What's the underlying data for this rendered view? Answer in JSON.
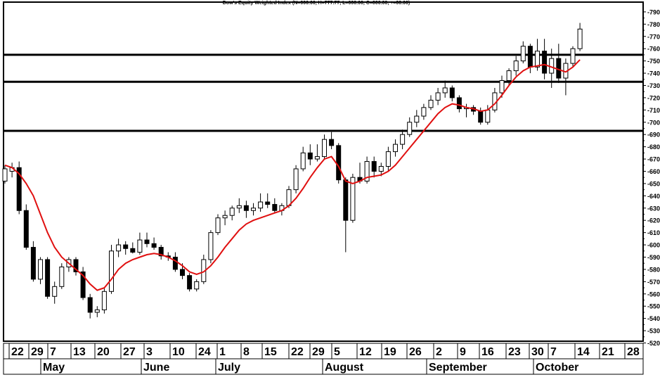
{
  "chart_data": {
    "type": "candlestick",
    "title": "Dow's Equity Weighted Index (N=000.00, H=777.77, L=000.00, C=000.00, +=00.00)",
    "ylim": [
      520,
      792
    ],
    "y_ticks": [
      790,
      780,
      770,
      760,
      750,
      740,
      730,
      720,
      710,
      700,
      690,
      680,
      670,
      660,
      650,
      640,
      630,
      620,
      610,
      600,
      590,
      580,
      570,
      560,
      550,
      540,
      530,
      520
    ],
    "grid": false,
    "x_day_labels": [
      "22",
      "29",
      "7",
      "13",
      "20",
      "27",
      "3",
      "10",
      "24",
      "1",
      "8",
      "15",
      "22",
      "29",
      "5",
      "12",
      "19",
      "26",
      "2",
      "9",
      "16",
      "23",
      "30",
      "7",
      "14",
      "21",
      "28"
    ],
    "x_month_labels": [
      "May",
      "June",
      "July",
      "August",
      "September",
      "October"
    ],
    "horizontal_levels": [
      755,
      733,
      693
    ],
    "candles": [
      {
        "o": 652,
        "h": 665,
        "l": 650,
        "c": 662
      },
      {
        "o": 660,
        "h": 667,
        "l": 655,
        "c": 663
      },
      {
        "o": 663,
        "h": 668,
        "l": 625,
        "c": 628
      },
      {
        "o": 628,
        "h": 633,
        "l": 596,
        "c": 598
      },
      {
        "o": 598,
        "h": 603,
        "l": 570,
        "c": 572
      },
      {
        "o": 572,
        "h": 590,
        "l": 568,
        "c": 588
      },
      {
        "o": 588,
        "h": 590,
        "l": 556,
        "c": 558
      },
      {
        "o": 558,
        "h": 570,
        "l": 552,
        "c": 566
      },
      {
        "o": 566,
        "h": 585,
        "l": 564,
        "c": 582
      },
      {
        "o": 582,
        "h": 590,
        "l": 578,
        "c": 588
      },
      {
        "o": 588,
        "h": 590,
        "l": 575,
        "c": 578
      },
      {
        "o": 578,
        "h": 582,
        "l": 555,
        "c": 557
      },
      {
        "o": 557,
        "h": 560,
        "l": 540,
        "c": 545
      },
      {
        "o": 545,
        "h": 550,
        "l": 541,
        "c": 547
      },
      {
        "o": 547,
        "h": 565,
        "l": 544,
        "c": 562
      },
      {
        "o": 562,
        "h": 600,
        "l": 560,
        "c": 595
      },
      {
        "o": 595,
        "h": 605,
        "l": 590,
        "c": 600
      },
      {
        "o": 600,
        "h": 603,
        "l": 592,
        "c": 597
      },
      {
        "o": 597,
        "h": 602,
        "l": 593,
        "c": 594
      },
      {
        "o": 594,
        "h": 610,
        "l": 592,
        "c": 604
      },
      {
        "o": 604,
        "h": 610,
        "l": 598,
        "c": 601
      },
      {
        "o": 601,
        "h": 606,
        "l": 596,
        "c": 598
      },
      {
        "o": 598,
        "h": 600,
        "l": 588,
        "c": 591
      },
      {
        "o": 591,
        "h": 594,
        "l": 587,
        "c": 590
      },
      {
        "o": 590,
        "h": 594,
        "l": 578,
        "c": 580
      },
      {
        "o": 580,
        "h": 585,
        "l": 572,
        "c": 575
      },
      {
        "o": 575,
        "h": 577,
        "l": 562,
        "c": 564
      },
      {
        "o": 564,
        "h": 572,
        "l": 562,
        "c": 570
      },
      {
        "o": 570,
        "h": 592,
        "l": 568,
        "c": 588
      },
      {
        "o": 588,
        "h": 612,
        "l": 585,
        "c": 610
      },
      {
        "o": 610,
        "h": 625,
        "l": 608,
        "c": 622
      },
      {
        "o": 622,
        "h": 628,
        "l": 616,
        "c": 624
      },
      {
        "o": 624,
        "h": 632,
        "l": 620,
        "c": 630
      },
      {
        "o": 630,
        "h": 638,
        "l": 626,
        "c": 632
      },
      {
        "o": 632,
        "h": 636,
        "l": 622,
        "c": 628
      },
      {
        "o": 628,
        "h": 634,
        "l": 624,
        "c": 630
      },
      {
        "o": 630,
        "h": 642,
        "l": 627,
        "c": 635
      },
      {
        "o": 635,
        "h": 642,
        "l": 630,
        "c": 633
      },
      {
        "o": 633,
        "h": 638,
        "l": 626,
        "c": 628
      },
      {
        "o": 628,
        "h": 634,
        "l": 624,
        "c": 632
      },
      {
        "o": 632,
        "h": 648,
        "l": 630,
        "c": 645
      },
      {
        "o": 645,
        "h": 665,
        "l": 642,
        "c": 662
      },
      {
        "o": 662,
        "h": 680,
        "l": 660,
        "c": 675
      },
      {
        "o": 675,
        "h": 682,
        "l": 665,
        "c": 670
      },
      {
        "o": 670,
        "h": 682,
        "l": 668,
        "c": 672
      },
      {
        "o": 672,
        "h": 690,
        "l": 670,
        "c": 686
      },
      {
        "o": 686,
        "h": 692,
        "l": 678,
        "c": 681
      },
      {
        "o": 681,
        "h": 683,
        "l": 650,
        "c": 653
      },
      {
        "o": 653,
        "h": 655,
        "l": 594,
        "c": 620
      },
      {
        "o": 620,
        "h": 658,
        "l": 618,
        "c": 655
      },
      {
        "o": 655,
        "h": 667,
        "l": 650,
        "c": 652
      },
      {
        "o": 652,
        "h": 672,
        "l": 650,
        "c": 668
      },
      {
        "o": 668,
        "h": 672,
        "l": 655,
        "c": 660
      },
      {
        "o": 660,
        "h": 667,
        "l": 656,
        "c": 664
      },
      {
        "o": 664,
        "h": 680,
        "l": 660,
        "c": 676
      },
      {
        "o": 676,
        "h": 686,
        "l": 672,
        "c": 682
      },
      {
        "o": 682,
        "h": 694,
        "l": 678,
        "c": 690
      },
      {
        "o": 690,
        "h": 704,
        "l": 688,
        "c": 700
      },
      {
        "o": 700,
        "h": 710,
        "l": 696,
        "c": 705
      },
      {
        "o": 705,
        "h": 715,
        "l": 702,
        "c": 712
      },
      {
        "o": 712,
        "h": 722,
        "l": 710,
        "c": 718
      },
      {
        "o": 718,
        "h": 728,
        "l": 714,
        "c": 724
      },
      {
        "o": 724,
        "h": 734,
        "l": 720,
        "c": 728
      },
      {
        "o": 728,
        "h": 730,
        "l": 717,
        "c": 720
      },
      {
        "o": 720,
        "h": 722,
        "l": 708,
        "c": 711
      },
      {
        "o": 711,
        "h": 715,
        "l": 704,
        "c": 712
      },
      {
        "o": 712,
        "h": 714,
        "l": 706,
        "c": 709
      },
      {
        "o": 709,
        "h": 712,
        "l": 698,
        "c": 700
      },
      {
        "o": 700,
        "h": 714,
        "l": 698,
        "c": 710
      },
      {
        "o": 710,
        "h": 728,
        "l": 708,
        "c": 724
      },
      {
        "o": 724,
        "h": 738,
        "l": 720,
        "c": 734
      },
      {
        "o": 734,
        "h": 744,
        "l": 730,
        "c": 742
      },
      {
        "o": 742,
        "h": 754,
        "l": 738,
        "c": 750
      },
      {
        "o": 750,
        "h": 766,
        "l": 748,
        "c": 762
      },
      {
        "o": 762,
        "h": 764,
        "l": 740,
        "c": 745
      },
      {
        "o": 745,
        "h": 768,
        "l": 742,
        "c": 758
      },
      {
        "o": 758,
        "h": 768,
        "l": 735,
        "c": 740
      },
      {
        "o": 740,
        "h": 760,
        "l": 728,
        "c": 752
      },
      {
        "o": 752,
        "h": 764,
        "l": 732,
        "c": 736
      },
      {
        "o": 736,
        "h": 752,
        "l": 722,
        "c": 748
      },
      {
        "o": 748,
        "h": 762,
        "l": 745,
        "c": 760
      },
      {
        "o": 760,
        "h": 781,
        "l": 758,
        "c": 776
      }
    ],
    "moving_average": [
      665,
      663,
      658,
      650,
      640,
      625,
      610,
      598,
      590,
      585,
      580,
      575,
      568,
      563,
      565,
      572,
      580,
      585,
      588,
      590,
      592,
      593,
      592,
      590,
      587,
      583,
      578,
      576,
      578,
      583,
      590,
      598,
      605,
      612,
      617,
      620,
      622,
      624,
      626,
      628,
      632,
      638,
      646,
      655,
      663,
      670,
      672,
      664,
      652,
      650,
      652,
      655,
      656,
      657,
      660,
      665,
      672,
      679,
      686,
      693,
      700,
      707,
      712,
      715,
      714,
      712,
      711,
      709,
      710,
      715,
      722,
      730,
      737,
      742,
      745,
      746,
      747,
      745,
      743,
      741,
      745,
      751
    ]
  }
}
